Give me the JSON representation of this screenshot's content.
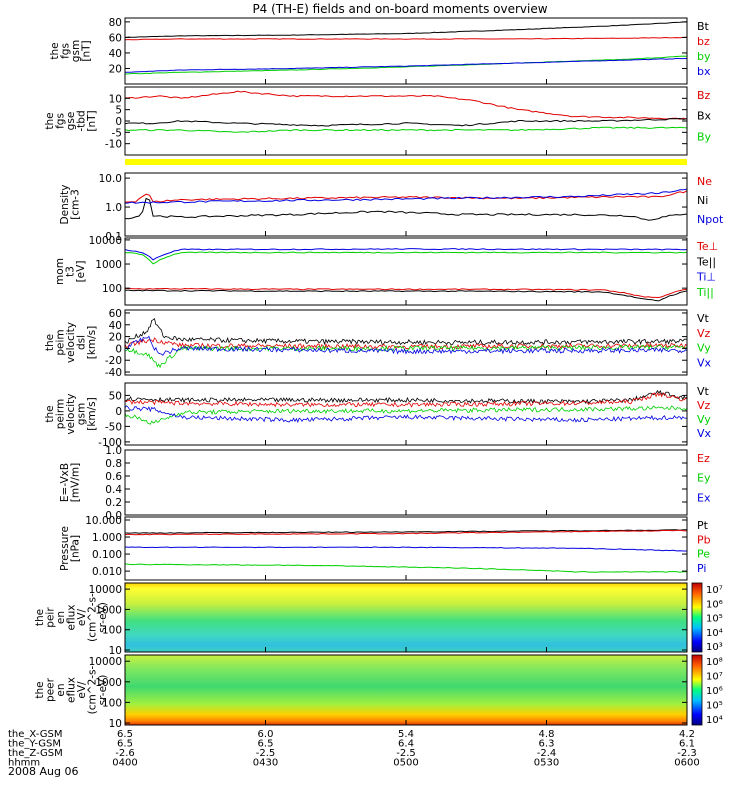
{
  "title": "P4 (TH-E) fields and on-board moments overview",
  "date_label": "2008 Aug 06",
  "colors": {
    "black": "#000000",
    "red": "#e00000",
    "green": "#00d000",
    "blue": "#0000e0",
    "yellow": "#ffff00",
    "axis": "#000000"
  },
  "chart_data": [
    {
      "id": "fgs",
      "type": "line",
      "ylabel_lines": [
        "the",
        "fgs",
        "gsm",
        "[nT]"
      ],
      "ylim": [
        0,
        85
      ],
      "yscale": "linear",
      "yticks": [
        20,
        40,
        60,
        80
      ],
      "series": [
        {
          "name": "Bt",
          "color": "black",
          "x": [
            0,
            0.1,
            0.3,
            0.5,
            0.7,
            0.9,
            1
          ],
          "y": [
            60,
            62,
            63,
            65,
            70,
            76,
            80
          ]
        },
        {
          "name": "bz",
          "color": "red",
          "x": [
            0,
            0.1,
            0.3,
            0.5,
            0.7,
            0.9,
            1
          ],
          "y": [
            57,
            58,
            58,
            58,
            58,
            59,
            60
          ]
        },
        {
          "name": "by",
          "color": "green",
          "x": [
            0,
            0.1,
            0.3,
            0.5,
            0.7,
            0.9,
            1
          ],
          "y": [
            13,
            15,
            18,
            22,
            27,
            32,
            36
          ]
        },
        {
          "name": "bx",
          "color": "blue",
          "x": [
            0,
            0.1,
            0.3,
            0.5,
            0.7,
            0.9,
            1
          ],
          "y": [
            15,
            18,
            20,
            23,
            27,
            31,
            33
          ]
        }
      ]
    },
    {
      "id": "fgs_gse",
      "type": "line",
      "ylabel_lines": [
        "the",
        "fgs",
        "gse",
        "-tbd",
        "[nT]"
      ],
      "ylim": [
        -15,
        15
      ],
      "yscale": "linear",
      "yticks": [
        -10,
        -5,
        0,
        5,
        10
      ],
      "series": [
        {
          "name": "Bz",
          "color": "red",
          "x": [
            0,
            0.06,
            0.1,
            0.2,
            0.3,
            0.45,
            0.55,
            0.62,
            0.7,
            0.8,
            1
          ],
          "y": [
            10,
            11,
            10,
            13,
            11,
            11,
            11,
            9,
            5,
            2,
            1
          ]
        },
        {
          "name": "Bx",
          "color": "black",
          "x": [
            0,
            0.05,
            0.1,
            0.2,
            0.35,
            0.5,
            0.6,
            0.7,
            0.85,
            1
          ],
          "y": [
            -1,
            -1,
            0,
            -1,
            -2,
            -1,
            -2,
            0,
            0,
            1
          ]
        },
        {
          "name": "By",
          "color": "green",
          "x": [
            0,
            0.1,
            0.2,
            0.3,
            0.5,
            0.7,
            0.85,
            1
          ],
          "y": [
            -4,
            -4,
            -5,
            -4,
            -4,
            -4,
            -3,
            -3
          ]
        }
      ]
    },
    {
      "id": "density",
      "type": "line",
      "ylabel_lines": [
        "Density",
        "[cm-3"
      ],
      "ylim": [
        0.1,
        15
      ],
      "yscale": "log",
      "yticks": [
        0.1,
        1.0,
        10.0
      ],
      "ytick_labels": [
        "0.1",
        "1.0",
        "10.0"
      ],
      "series": [
        {
          "name": "Ne",
          "color": "red",
          "x": [
            0,
            0.02,
            0.04,
            0.05,
            0.1,
            0.3,
            0.5,
            0.7,
            0.9,
            0.95,
            1
          ],
          "y": [
            1.5,
            1.6,
            3.0,
            1.5,
            1.8,
            2.0,
            2.2,
            2.0,
            2.3,
            2.2,
            3.5
          ]
        },
        {
          "name": "Ni",
          "color": "black",
          "x": [
            0,
            0.03,
            0.04,
            0.05,
            0.1,
            0.3,
            0.45,
            0.6,
            0.8,
            0.9,
            0.93,
            1
          ],
          "y": [
            0.4,
            0.5,
            2.5,
            0.5,
            0.45,
            0.55,
            0.7,
            0.55,
            0.55,
            0.5,
            0.35,
            0.6
          ]
        },
        {
          "name": "Npot",
          "color": "blue",
          "x": [
            0,
            0.2,
            0.5,
            0.8,
            0.95,
            1
          ],
          "y": [
            1.4,
            1.6,
            1.9,
            2.3,
            3.0,
            4.0
          ]
        }
      ]
    },
    {
      "id": "temperature",
      "type": "line",
      "ylabel_lines": [
        "mom",
        "t3",
        "[eV]"
      ],
      "ylim": [
        20,
        12000
      ],
      "yscale": "log",
      "yticks": [
        100,
        1000,
        10000
      ],
      "ytick_labels": [
        "100",
        "1000",
        "10000"
      ],
      "series": [
        {
          "name": "Te⊥",
          "color": "red",
          "x": [
            0,
            0.3,
            0.6,
            0.85,
            0.92,
            0.95,
            1
          ],
          "y": [
            95,
            90,
            90,
            85,
            45,
            40,
            90
          ]
        },
        {
          "name": "Te||",
          "color": "black",
          "x": [
            0,
            0.3,
            0.6,
            0.85,
            0.92,
            0.95,
            1
          ],
          "y": [
            80,
            75,
            75,
            70,
            35,
            30,
            75
          ]
        },
        {
          "name": "Ti⊥",
          "color": "blue",
          "x": [
            0,
            0.03,
            0.05,
            0.1,
            0.5,
            1
          ],
          "y": [
            4000,
            3000,
            1500,
            4000,
            4200,
            4000
          ]
        },
        {
          "name": "Ti||",
          "color": "green",
          "x": [
            0,
            0.03,
            0.05,
            0.1,
            0.5,
            1
          ],
          "y": [
            3000,
            2500,
            1000,
            3000,
            3000,
            3000
          ]
        }
      ]
    },
    {
      "id": "peim_velocity",
      "type": "line",
      "ylabel_lines": [
        "the",
        "peim",
        "velocity",
        "dsl",
        "[km/s]"
      ],
      "ylim": [
        -45,
        65
      ],
      "yscale": "linear",
      "yticks": [
        -40,
        -20,
        0,
        20,
        40,
        60
      ],
      "series": [
        {
          "name": "Vt",
          "color": "black",
          "x": [
            0,
            0.04,
            0.05,
            0.07,
            0.1,
            0.3,
            0.6,
            1
          ],
          "y": [
            10,
            30,
            50,
            20,
            15,
            12,
            10,
            12
          ]
        },
        {
          "name": "Vz",
          "color": "red",
          "x": [
            0,
            0.05,
            0.1,
            0.5,
            1
          ],
          "y": [
            5,
            15,
            5,
            3,
            5
          ]
        },
        {
          "name": "Vy",
          "color": "green",
          "x": [
            0,
            0.04,
            0.06,
            0.1,
            0.5,
            1
          ],
          "y": [
            0,
            -10,
            -30,
            0,
            0,
            2
          ]
        },
        {
          "name": "Vx",
          "color": "blue",
          "x": [
            0,
            0.04,
            0.06,
            0.1,
            0.5,
            1
          ],
          "y": [
            0,
            20,
            -10,
            0,
            -5,
            -3
          ]
        }
      ]
    },
    {
      "id": "peir_velocity",
      "type": "line",
      "ylabel_lines": [
        "the",
        "peirm",
        "velocity",
        "gsm",
        "[km/s]"
      ],
      "ylim": [
        -110,
        90
      ],
      "yscale": "linear",
      "yticks": [
        -100,
        -50,
        0,
        50
      ],
      "series": [
        {
          "name": "Vt",
          "color": "black",
          "x": [
            0,
            0.1,
            0.3,
            0.5,
            0.8,
            0.9,
            0.95,
            1
          ],
          "y": [
            40,
            35,
            35,
            35,
            30,
            35,
            60,
            40
          ]
        },
        {
          "name": "Vz",
          "color": "red",
          "x": [
            0,
            0.1,
            0.3,
            0.5,
            0.8,
            0.9,
            0.95,
            1
          ],
          "y": [
            30,
            25,
            20,
            20,
            25,
            30,
            55,
            35
          ]
        },
        {
          "name": "Vy",
          "color": "green",
          "x": [
            0,
            0.05,
            0.1,
            0.3,
            0.5,
            0.8,
            1
          ],
          "y": [
            -10,
            -40,
            -5,
            0,
            0,
            5,
            10
          ]
        },
        {
          "name": "Vx",
          "color": "blue",
          "x": [
            0,
            0.05,
            0.1,
            0.3,
            0.5,
            0.8,
            1
          ],
          "y": [
            10,
            5,
            -20,
            -30,
            -20,
            -30,
            -20
          ]
        }
      ]
    },
    {
      "id": "e_vxb",
      "type": "line",
      "ylabel_lines": [
        "E=-VxB",
        "[mV/m]"
      ],
      "ylim": [
        0,
        1
      ],
      "yscale": "linear",
      "yticks": [
        0.0,
        0.2,
        0.4,
        0.6,
        0.8,
        1.0
      ],
      "ytick_labels": [
        "0.0",
        "0.2",
        "0.4",
        "0.6",
        "0.8",
        "1.0"
      ],
      "series": [
        {
          "name": "Ez",
          "color": "red",
          "x": [],
          "y": []
        },
        {
          "name": "Ey",
          "color": "green",
          "x": [],
          "y": []
        },
        {
          "name": "Ex",
          "color": "blue",
          "x": [],
          "y": []
        }
      ]
    },
    {
      "id": "pressure",
      "type": "line",
      "ylabel_lines": [
        "Pressure",
        "[nPa]"
      ],
      "ylim": [
        0.003,
        15
      ],
      "yscale": "log",
      "yticks": [
        0.01,
        0.1,
        1.0,
        10.0
      ],
      "ytick_labels": [
        "0.010",
        "0.100",
        "1.000",
        "10.000"
      ],
      "series": [
        {
          "name": "Pt",
          "color": "black",
          "x": [
            0,
            0.5,
            1
          ],
          "y": [
            1.7,
            2.0,
            2.6
          ]
        },
        {
          "name": "Pb",
          "color": "red",
          "x": [
            0,
            0.5,
            1
          ],
          "y": [
            1.4,
            1.6,
            2.4
          ]
        },
        {
          "name": "Pe",
          "color": "green",
          "x": [
            0,
            0.3,
            0.6,
            0.8,
            1
          ],
          "y": [
            0.025,
            0.022,
            0.015,
            0.009,
            0.009
          ]
        },
        {
          "name": "Pi",
          "color": "blue",
          "x": [
            0,
            0.5,
            0.8,
            1
          ],
          "y": [
            0.25,
            0.25,
            0.22,
            0.15
          ]
        }
      ]
    },
    {
      "id": "peir_spec",
      "type": "heatmap",
      "ylabel_lines": [
        "the",
        "peir",
        "en",
        "eflux",
        "eV/",
        "(cm^2-s-",
        "sr-eV)"
      ],
      "ylim": [
        8,
        20000
      ],
      "yscale": "log",
      "yticks": [
        10,
        100,
        1000,
        10000
      ],
      "ytick_labels": [
        "10",
        "100",
        "1000",
        "10000"
      ],
      "colorbar_labels": [
        "10³",
        "10⁴",
        "10⁵",
        "10⁶",
        "10⁷"
      ]
    },
    {
      "id": "peer_spec",
      "type": "heatmap",
      "ylabel_lines": [
        "the",
        "peer",
        "en",
        "eflux",
        "eV/",
        "(cm^2-s-",
        "sr-eV)"
      ],
      "ylim": [
        8,
        20000
      ],
      "yscale": "log",
      "yticks": [
        10,
        100,
        1000,
        10000
      ],
      "ytick_labels": [
        "10",
        "100",
        "1000",
        "10000"
      ],
      "colorbar_labels": [
        "10⁴",
        "10⁵",
        "10⁶",
        "10⁷",
        "10⁸"
      ]
    }
  ],
  "xaxis": {
    "row_labels": [
      "the_X-GSM",
      "the_Y-GSM",
      "the_Z-GSM",
      "hhmm"
    ],
    "ticks": [
      {
        "x": 0.0,
        "values": [
          "6.5",
          "6.5",
          "-2.6",
          "0400"
        ]
      },
      {
        "x": 0.25,
        "values": [
          "6.0",
          "6.5",
          "-2.5",
          "0430"
        ]
      },
      {
        "x": 0.5,
        "values": [
          "5.4",
          "6.4",
          "-2.5",
          "0500"
        ]
      },
      {
        "x": 0.75,
        "values": [
          "4.8",
          "6.3",
          "-2.4",
          "0530"
        ]
      },
      {
        "x": 1.0,
        "values": [
          "4.2",
          "6.1",
          "-2.3",
          "0600"
        ]
      }
    ]
  }
}
